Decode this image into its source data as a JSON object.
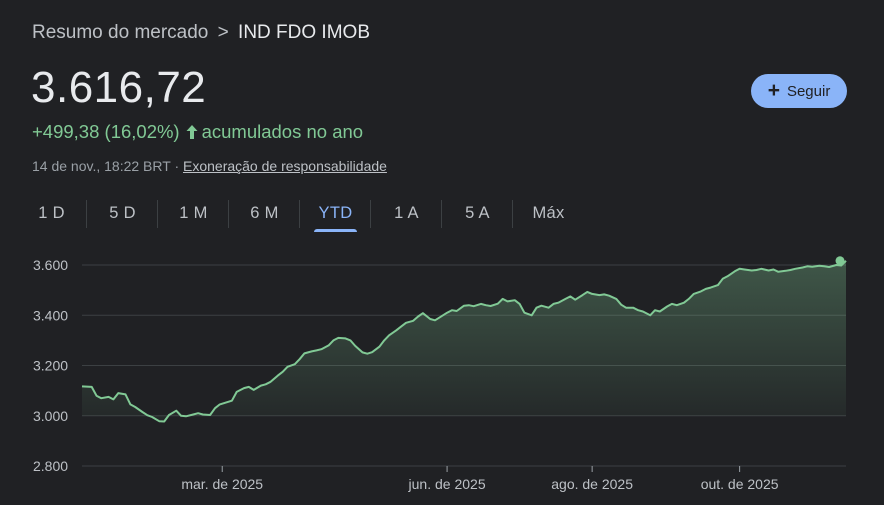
{
  "breadcrumb": {
    "parent": "Resumo do mercado",
    "separator": ">",
    "current": "IND FDO IMOB"
  },
  "price": "3.616,72",
  "follow_button": {
    "label": "Seguir"
  },
  "change": {
    "value": "+499,38 (16,02%)",
    "suffix": "acumulados no ano",
    "direction": "up"
  },
  "meta": {
    "timestamp": "14 de nov., 18:22 BRT",
    "separator": "·",
    "disclaimer": "Exoneração de responsabilidade"
  },
  "tabs": [
    {
      "label": "1 D",
      "active": false
    },
    {
      "label": "5 D",
      "active": false
    },
    {
      "label": "1 M",
      "active": false
    },
    {
      "label": "6 M",
      "active": false
    },
    {
      "label": "YTD",
      "active": true
    },
    {
      "label": "1 A",
      "active": false
    },
    {
      "label": "5 A",
      "active": false
    },
    {
      "label": "Máx",
      "active": false
    }
  ],
  "colors": {
    "line": "#81c995",
    "accent": "#8ab4f8",
    "grid": "#3c4043",
    "background": "#202124"
  },
  "chart_data": {
    "type": "area",
    "y_tick_labels": [
      "3.600",
      "3.400",
      "3.200",
      "3.000",
      "2.800"
    ],
    "y_ticks": [
      3600,
      3400,
      3200,
      3000,
      2800
    ],
    "ylim": [
      2800,
      3600
    ],
    "x_tick_labels": [
      {
        "label": "mar. de 2025",
        "date": "2025-03-01"
      },
      {
        "label": "jun. de 2025",
        "date": "2025-06-02"
      },
      {
        "label": "ago. de 2025",
        "date": "2025-08-01"
      },
      {
        "label": "out. de 2025",
        "date": "2025-10-01"
      }
    ],
    "xlim": [
      "2025-01-02",
      "2025-11-14"
    ],
    "grid": true,
    "series": [
      {
        "points": [
          [
            "2025-01-02",
            3117
          ],
          [
            "2025-01-06",
            3115
          ],
          [
            "2025-01-08",
            3080
          ],
          [
            "2025-01-10",
            3070
          ],
          [
            "2025-01-13",
            3075
          ],
          [
            "2025-01-15",
            3065
          ],
          [
            "2025-01-17",
            3090
          ],
          [
            "2025-01-20",
            3085
          ],
          [
            "2025-01-22",
            3045
          ],
          [
            "2025-01-24",
            3035
          ],
          [
            "2025-01-27",
            3015
          ],
          [
            "2025-01-29",
            3002
          ],
          [
            "2025-01-31",
            2995
          ],
          [
            "2025-02-03",
            2978
          ],
          [
            "2025-02-05",
            2977
          ],
          [
            "2025-02-07",
            3003
          ],
          [
            "2025-02-10",
            3020
          ],
          [
            "2025-02-12",
            3000
          ],
          [
            "2025-02-14",
            2998
          ],
          [
            "2025-02-17",
            3005
          ],
          [
            "2025-02-19",
            3010
          ],
          [
            "2025-02-21",
            3005
          ],
          [
            "2025-02-24",
            3003
          ],
          [
            "2025-02-26",
            3030
          ],
          [
            "2025-02-28",
            3045
          ],
          [
            "2025-03-05",
            3060
          ],
          [
            "2025-03-07",
            3095
          ],
          [
            "2025-03-10",
            3110
          ],
          [
            "2025-03-12",
            3115
          ],
          [
            "2025-03-14",
            3103
          ],
          [
            "2025-03-17",
            3120
          ],
          [
            "2025-03-19",
            3125
          ],
          [
            "2025-03-21",
            3135
          ],
          [
            "2025-03-24",
            3160
          ],
          [
            "2025-03-26",
            3175
          ],
          [
            "2025-03-28",
            3195
          ],
          [
            "2025-03-31",
            3205
          ],
          [
            "2025-04-02",
            3225
          ],
          [
            "2025-04-04",
            3248
          ],
          [
            "2025-04-07",
            3256
          ],
          [
            "2025-04-09",
            3260
          ],
          [
            "2025-04-11",
            3265
          ],
          [
            "2025-04-14",
            3280
          ],
          [
            "2025-04-16",
            3300
          ],
          [
            "2025-04-18",
            3310
          ],
          [
            "2025-04-21",
            3308
          ],
          [
            "2025-04-23",
            3300
          ],
          [
            "2025-04-25",
            3278
          ],
          [
            "2025-04-28",
            3252
          ],
          [
            "2025-04-30",
            3247
          ],
          [
            "2025-05-02",
            3253
          ],
          [
            "2025-05-05",
            3275
          ],
          [
            "2025-05-07",
            3300
          ],
          [
            "2025-05-09",
            3320
          ],
          [
            "2025-05-12",
            3340
          ],
          [
            "2025-05-14",
            3355
          ],
          [
            "2025-05-16",
            3370
          ],
          [
            "2025-05-19",
            3378
          ],
          [
            "2025-05-21",
            3395
          ],
          [
            "2025-05-23",
            3408
          ],
          [
            "2025-05-26",
            3385
          ],
          [
            "2025-05-28",
            3380
          ],
          [
            "2025-05-30",
            3392
          ],
          [
            "2025-06-02",
            3410
          ],
          [
            "2025-06-04",
            3420
          ],
          [
            "2025-06-06",
            3417
          ],
          [
            "2025-06-09",
            3438
          ],
          [
            "2025-06-11",
            3440
          ],
          [
            "2025-06-13",
            3436
          ],
          [
            "2025-06-16",
            3445
          ],
          [
            "2025-06-18",
            3440
          ],
          [
            "2025-06-20",
            3437
          ],
          [
            "2025-06-23",
            3446
          ],
          [
            "2025-06-25",
            3465
          ],
          [
            "2025-06-27",
            3455
          ],
          [
            "2025-06-30",
            3460
          ],
          [
            "2025-07-02",
            3445
          ],
          [
            "2025-07-04",
            3410
          ],
          [
            "2025-07-07",
            3400
          ],
          [
            "2025-07-09",
            3430
          ],
          [
            "2025-07-11",
            3438
          ],
          [
            "2025-07-14",
            3430
          ],
          [
            "2025-07-16",
            3445
          ],
          [
            "2025-07-18",
            3450
          ],
          [
            "2025-07-21",
            3465
          ],
          [
            "2025-07-23",
            3475
          ],
          [
            "2025-07-25",
            3462
          ],
          [
            "2025-07-28",
            3480
          ],
          [
            "2025-07-30",
            3493
          ],
          [
            "2025-08-01",
            3485
          ],
          [
            "2025-08-04",
            3480
          ],
          [
            "2025-08-06",
            3483
          ],
          [
            "2025-08-08",
            3478
          ],
          [
            "2025-08-11",
            3465
          ],
          [
            "2025-08-13",
            3442
          ],
          [
            "2025-08-15",
            3430
          ],
          [
            "2025-08-18",
            3430
          ],
          [
            "2025-08-20",
            3420
          ],
          [
            "2025-08-22",
            3415
          ],
          [
            "2025-08-25",
            3400
          ],
          [
            "2025-08-27",
            3420
          ],
          [
            "2025-08-29",
            3415
          ],
          [
            "2025-09-01",
            3435
          ],
          [
            "2025-09-03",
            3445
          ],
          [
            "2025-09-05",
            3440
          ],
          [
            "2025-09-08",
            3450
          ],
          [
            "2025-09-10",
            3465
          ],
          [
            "2025-09-12",
            3485
          ],
          [
            "2025-09-15",
            3495
          ],
          [
            "2025-09-17",
            3505
          ],
          [
            "2025-09-19",
            3510
          ],
          [
            "2025-09-22",
            3520
          ],
          [
            "2025-09-24",
            3545
          ],
          [
            "2025-09-26",
            3555
          ],
          [
            "2025-09-29",
            3575
          ],
          [
            "2025-10-01",
            3585
          ],
          [
            "2025-10-03",
            3582
          ],
          [
            "2025-10-06",
            3578
          ],
          [
            "2025-10-08",
            3580
          ],
          [
            "2025-10-10",
            3585
          ],
          [
            "2025-10-13",
            3578
          ],
          [
            "2025-10-15",
            3582
          ],
          [
            "2025-10-17",
            3573
          ],
          [
            "2025-10-20",
            3577
          ],
          [
            "2025-10-22",
            3580
          ],
          [
            "2025-10-24",
            3585
          ],
          [
            "2025-10-27",
            3590
          ],
          [
            "2025-10-29",
            3595
          ],
          [
            "2025-10-31",
            3593
          ],
          [
            "2025-11-03",
            3597
          ],
          [
            "2025-11-05",
            3595
          ],
          [
            "2025-11-07",
            3592
          ],
          [
            "2025-11-10",
            3600
          ],
          [
            "2025-11-12",
            3598
          ],
          [
            "2025-11-14",
            3616.72
          ]
        ]
      }
    ]
  }
}
